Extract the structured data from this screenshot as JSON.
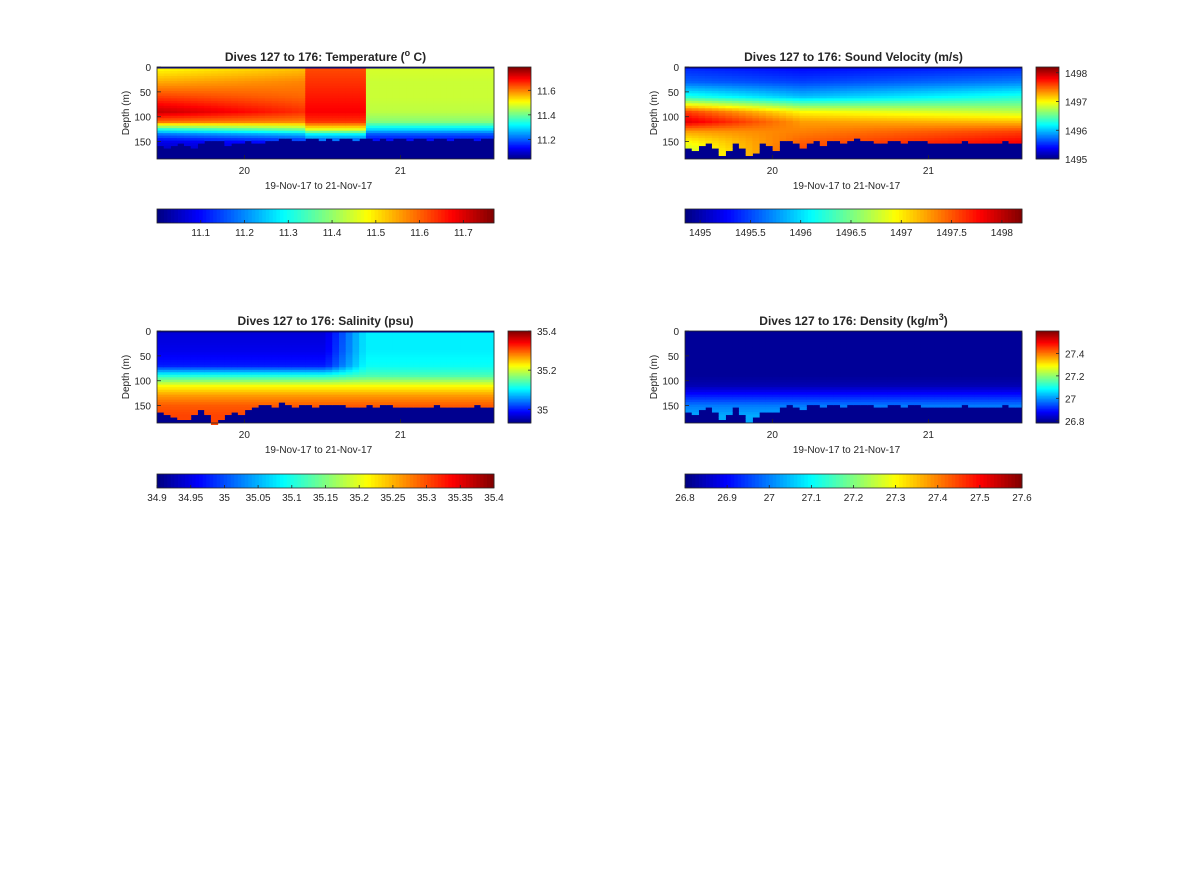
{
  "chart_data": [
    {
      "type": "heatmap",
      "title": "Dives 127 to 176: Temperature (",
      "title_sup": "o",
      "title_tail": " C)",
      "xlabel": "19-Nov-17 to 21-Nov-17",
      "ylabel": "Depth (m)",
      "x_range": [
        19.44,
        21.6
      ],
      "y_range": [
        0,
        185
      ],
      "y_reversed": true,
      "x_ticks": [
        20,
        21
      ],
      "x_tick_labels": [
        "20",
        "21"
      ],
      "y_ticks": [
        0,
        50,
        100,
        150
      ],
      "y_tick_labels": [
        "0",
        "50",
        "100",
        "150"
      ],
      "colorbar_right": {
        "range": [
          11.04,
          11.79
        ],
        "ticks": [
          11.2,
          11.4,
          11.6
        ],
        "labels": [
          "11.2",
          "11.4",
          "11.6"
        ]
      },
      "colorbar_bottom": {
        "range": [
          11.0,
          11.77
        ],
        "ticks": [
          11.1,
          11.2,
          11.3,
          11.4,
          11.5,
          11.6,
          11.7
        ],
        "labels": [
          "11.1",
          "11.2",
          "11.3",
          "11.4",
          "11.5",
          "11.6",
          "11.7"
        ]
      },
      "grid": false,
      "colormap": "jet",
      "no_data_color": "#00008f",
      "bottom_depth_m": [
        158,
        160,
        155,
        150,
        158,
        163,
        150,
        147,
        145,
        148,
        155,
        152,
        149,
        146,
        150,
        153,
        148,
        147,
        143,
        142,
        144,
        146,
        142,
        141,
        144,
        143,
        145,
        140,
        143,
        146,
        142,
        141,
        144,
        143,
        145,
        142,
        142,
        144,
        143,
        141,
        145,
        142,
        141,
        144,
        143,
        142,
        143,
        144,
        141,
        143
      ],
      "profile_control": {
        "depth_m": [
          0,
          30,
          60,
          90,
          110,
          125,
          135,
          150,
          170
        ],
        "early": [
          11.5,
          11.57,
          11.65,
          11.74,
          11.62,
          11.35,
          11.22,
          11.12,
          11.08
        ],
        "mid": [
          11.55,
          11.6,
          11.62,
          11.66,
          11.6,
          11.42,
          11.28,
          11.15,
          11.1
        ],
        "warm_column": [
          11.64,
          11.66,
          11.68,
          11.7,
          11.66,
          11.5,
          11.32,
          11.18,
          11.12
        ],
        "late": [
          11.48,
          11.47,
          11.47,
          11.46,
          11.42,
          11.3,
          11.2,
          11.12,
          11.08
        ]
      }
    },
    {
      "type": "heatmap",
      "title": "Dives 127 to 176: Sound Velocity (m/s)",
      "xlabel": "19-Nov-17 to 21-Nov-17",
      "ylabel": "Depth (m)",
      "x_range": [
        19.44,
        21.6
      ],
      "y_range": [
        0,
        185
      ],
      "y_reversed": true,
      "x_ticks": [
        20,
        21
      ],
      "x_tick_labels": [
        "20",
        "21"
      ],
      "y_ticks": [
        0,
        50,
        100,
        150
      ],
      "y_tick_labels": [
        "0",
        "50",
        "100",
        "150"
      ],
      "colorbar_right": {
        "range": [
          1495,
          1498.2
        ],
        "ticks": [
          1495,
          1496,
          1497,
          1498
        ],
        "labels": [
          "1495",
          "1496",
          "1497",
          "1498"
        ]
      },
      "colorbar_bottom": {
        "range": [
          1494.85,
          1498.2
        ],
        "ticks": [
          1495,
          1495.5,
          1496,
          1496.5,
          1497,
          1497.5,
          1498
        ],
        "labels": [
          "1495",
          "1495.5",
          "1496",
          "1496.5",
          "1497",
          "1497.5",
          "1498"
        ]
      },
      "grid": false,
      "colormap": "jet",
      "no_data_color": "#00008f",
      "bottom_depth_m": [
        162,
        168,
        158,
        150,
        160,
        175,
        168,
        150,
        162,
        178,
        170,
        150,
        158,
        165,
        148,
        145,
        152,
        160,
        150,
        145,
        158,
        148,
        145,
        150,
        147,
        143,
        148,
        145,
        150,
        152,
        148,
        145,
        150,
        147,
        145,
        148,
        150,
        152,
        149,
        150,
        153,
        148,
        151,
        150,
        150,
        152,
        149,
        148,
        150,
        149
      ],
      "profile_control": {
        "depth_m": [
          0,
          30,
          60,
          90,
          110,
          130,
          150,
          170
        ],
        "early": [
          1495.5,
          1495.7,
          1496.3,
          1497.6,
          1497.9,
          1497.3,
          1497.0,
          1496.8
        ],
        "mid": [
          1495.4,
          1495.6,
          1496.0,
          1497.0,
          1497.3,
          1497.4,
          1497.5,
          1497.6
        ],
        "late": [
          1495.5,
          1495.8,
          1496.3,
          1496.8,
          1497.2,
          1497.6,
          1497.8,
          1497.8
        ]
      }
    },
    {
      "type": "heatmap",
      "title": "Dives 127 to 176: Salinity (psu)",
      "xlabel": "19-Nov-17 to 21-Nov-17",
      "ylabel": "Depth (m)",
      "x_range": [
        19.44,
        21.6
      ],
      "y_range": [
        0,
        185
      ],
      "y_reversed": true,
      "x_ticks": [
        20,
        21
      ],
      "x_tick_labels": [
        "20",
        "21"
      ],
      "y_ticks": [
        0,
        50,
        100,
        150
      ],
      "y_tick_labels": [
        "0",
        "50",
        "100",
        "150"
      ],
      "colorbar_right": {
        "range": [
          34.93,
          35.4
        ],
        "ticks": [
          35,
          35.2,
          35.4
        ],
        "labels": [
          "35",
          "35.2",
          "35.4"
        ]
      },
      "colorbar_bottom": {
        "range": [
          34.9,
          35.4
        ],
        "ticks": [
          34.9,
          34.95,
          35,
          35.05,
          35.1,
          35.15,
          35.2,
          35.25,
          35.3,
          35.35,
          35.4
        ],
        "labels": [
          "34.9",
          "34.95",
          "35",
          "35.05",
          "35.1",
          "35.15",
          "35.2",
          "35.25",
          "35.3",
          "35.35",
          "35.4"
        ]
      },
      "grid": false,
      "colormap": "jet",
      "no_data_color": "#00008f",
      "bottom_depth_m": [
        162,
        168,
        170,
        178,
        175,
        165,
        158,
        168,
        185,
        178,
        168,
        160,
        165,
        158,
        150,
        145,
        148,
        152,
        140,
        145,
        150,
        148,
        146,
        150,
        147,
        145,
        148,
        146,
        150,
        152,
        149,
        147,
        150,
        148,
        146,
        149,
        151,
        153,
        150,
        149,
        152,
        148,
        150,
        151,
        150,
        153,
        149,
        148,
        150,
        149
      ],
      "profile_control": {
        "depth_m": [
          0,
          40,
          70,
          90,
          110,
          130,
          150,
          170
        ],
        "fresh_top": [
          34.97,
          34.98,
          35.0,
          35.12,
          35.22,
          35.27,
          35.3,
          35.31
        ],
        "salty_top": [
          35.1,
          35.1,
          35.11,
          35.14,
          35.22,
          35.27,
          35.3,
          35.31
        ]
      }
    },
    {
      "type": "heatmap",
      "title": "Dives 127 to 176: Density (kg/m",
      "title_sup": "3",
      "title_tail": ")",
      "xlabel": "19-Nov-17 to 21-Nov-17",
      "ylabel": "Depth (m)",
      "x_range": [
        19.44,
        21.6
      ],
      "y_range": [
        0,
        185
      ],
      "y_reversed": true,
      "x_ticks": [
        20,
        21
      ],
      "x_tick_labels": [
        "20",
        "21"
      ],
      "y_ticks": [
        0,
        50,
        100,
        150
      ],
      "y_tick_labels": [
        "0",
        "50",
        "100",
        "150"
      ],
      "colorbar_right": {
        "range": [
          26.78,
          27.6
        ],
        "ticks": [
          26.8,
          27,
          27.2,
          27.4
        ],
        "labels": [
          "26.8",
          "27",
          "27.2",
          "27.4"
        ]
      },
      "colorbar_bottom": {
        "range": [
          26.8,
          27.6
        ],
        "ticks": [
          26.8,
          26.9,
          27,
          27.1,
          27.2,
          27.3,
          27.4,
          27.5,
          27.6
        ],
        "labels": [
          "26.8",
          "26.9",
          "27",
          "27.1",
          "27.2",
          "27.3",
          "27.4",
          "27.5",
          "27.6"
        ]
      },
      "grid": false,
      "colormap": "jet",
      "no_data_color": "#00008f",
      "bottom_depth_m": [
        160,
        166,
        158,
        152,
        162,
        176,
        168,
        152,
        165,
        180,
        172,
        160,
        163,
        160,
        150,
        146,
        150,
        155,
        146,
        145,
        150,
        147,
        146,
        150,
        147,
        145,
        148,
        146,
        150,
        151,
        148,
        146,
        150,
        148,
        146,
        149,
        150,
        152,
        149,
        149,
        152,
        148,
        150,
        150,
        150,
        152,
        149,
        148,
        150,
        149
      ],
      "profile_control": {
        "depth_m": [
          0,
          90,
          110,
          130,
          150,
          170
        ],
        "values": [
          26.8,
          26.8,
          26.82,
          26.9,
          26.98,
          27.02
        ]
      }
    }
  ]
}
